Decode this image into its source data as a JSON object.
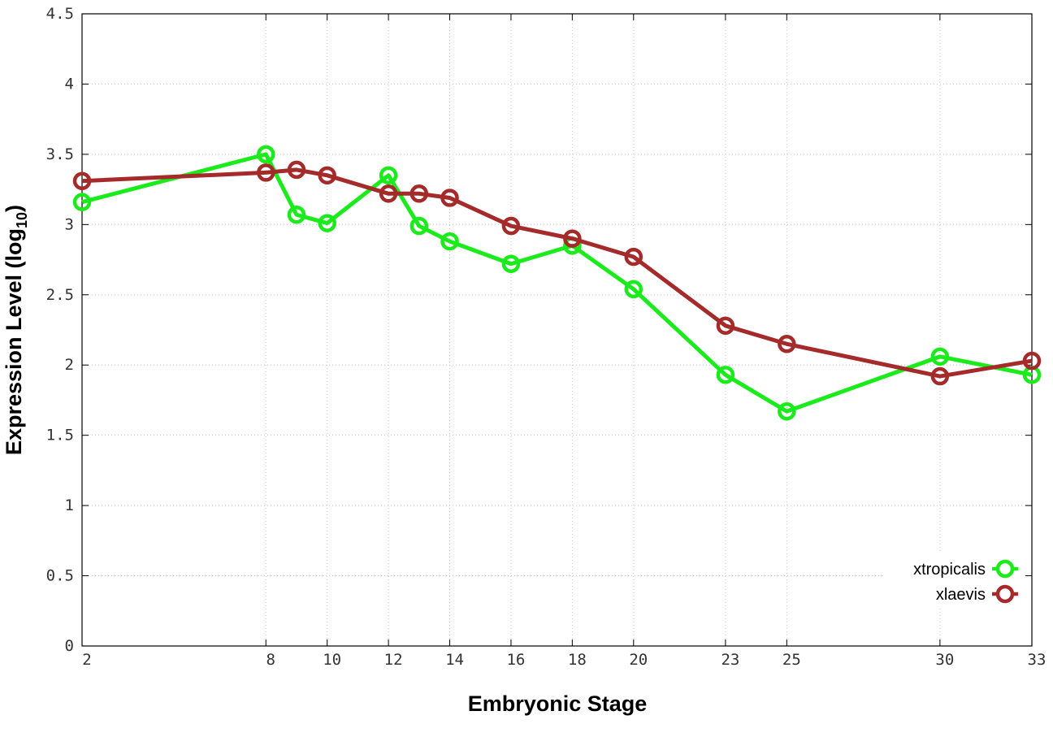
{
  "chart_data": {
    "type": "line",
    "title": "",
    "xlabel": "Embryonic Stage",
    "ylabel": "Expression Level (log",
    "ylabel_subscript": "10",
    "ylabel_close": ")",
    "x": [
      2,
      8,
      9,
      10,
      12,
      13,
      14,
      16,
      18,
      20,
      23,
      25,
      30,
      33
    ],
    "x_tick_labels": [
      "2",
      "8",
      "10",
      "12",
      "14",
      "16",
      "18",
      "20",
      "23",
      "25",
      "30",
      "33"
    ],
    "y_ticks": [
      0,
      0.5,
      1,
      1.5,
      2,
      2.5,
      3,
      3.5,
      4,
      4.5
    ],
    "y_tick_labels": [
      "0",
      "0.5",
      "1",
      "1.5",
      "2",
      "2.5",
      "3",
      "3.5",
      "4",
      "4.5"
    ],
    "ylim": [
      0,
      4.5
    ],
    "grid": true,
    "legend_position": "bottom-right",
    "series": [
      {
        "name": "xtropicalis",
        "color": "#1aeb1a",
        "values": [
          3.16,
          3.5,
          3.07,
          3.01,
          3.35,
          2.99,
          2.88,
          2.72,
          2.85,
          2.54,
          1.93,
          1.67,
          2.06,
          1.93
        ]
      },
      {
        "name": "xlaevis",
        "color": "#a52a2a",
        "values": [
          3.31,
          3.37,
          3.39,
          3.35,
          3.22,
          3.22,
          3.19,
          2.99,
          2.9,
          2.77,
          2.28,
          2.15,
          1.92,
          2.03
        ]
      }
    ]
  }
}
